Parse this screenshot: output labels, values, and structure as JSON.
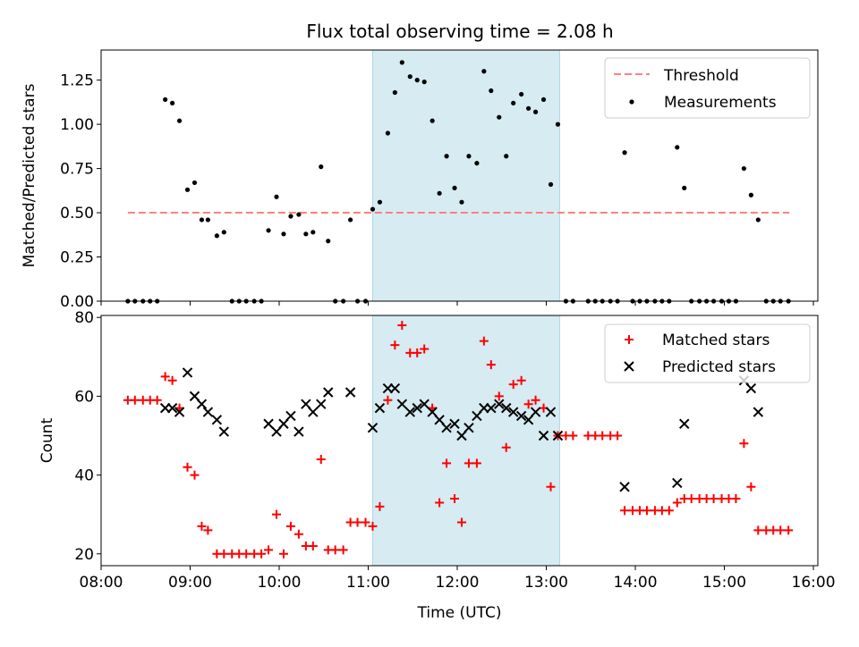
{
  "title": "Flux total observing time = 2.08 h",
  "colors": {
    "threshold": "#ff8080",
    "measurements": "#000000",
    "matched": "#ff0000",
    "predicted": "#000000",
    "shade": "#add8e6"
  },
  "chart_data": [
    {
      "type": "scatter",
      "ylabel": "Matched/Predicted stars",
      "ylim": [
        0,
        1.42
      ],
      "xlim": [
        8.0,
        16.05
      ],
      "yticks": [
        0.0,
        0.25,
        0.5,
        0.75,
        1.0,
        1.25
      ],
      "yticklabels": [
        "0.00",
        "0.25",
        "0.50",
        "0.75",
        "1.00",
        "1.25"
      ],
      "grid": false,
      "legend_position": "top-right",
      "shaded_interval": [
        11.05,
        13.15
      ],
      "threshold": {
        "name": "Threshold",
        "y": 0.5,
        "x_range": [
          8.3,
          15.73
        ]
      },
      "series": [
        {
          "name": "Measurements",
          "points": [
            [
              8.3,
              0
            ],
            [
              8.38,
              0
            ],
            [
              8.47,
              0
            ],
            [
              8.55,
              0
            ],
            [
              8.63,
              0
            ],
            [
              8.72,
              1.14
            ],
            [
              8.8,
              1.12
            ],
            [
              8.88,
              1.02
            ],
            [
              8.97,
              0.63
            ],
            [
              9.05,
              0.67
            ],
            [
              9.13,
              0.46
            ],
            [
              9.2,
              0.46
            ],
            [
              9.3,
              0.37
            ],
            [
              9.38,
              0.39
            ],
            [
              9.47,
              0
            ],
            [
              9.55,
              0
            ],
            [
              9.63,
              0
            ],
            [
              9.72,
              0
            ],
            [
              9.8,
              0
            ],
            [
              9.88,
              0.4
            ],
            [
              9.97,
              0.59
            ],
            [
              10.05,
              0.38
            ],
            [
              10.13,
              0.48
            ],
            [
              10.22,
              0.49
            ],
            [
              10.3,
              0.38
            ],
            [
              10.38,
              0.39
            ],
            [
              10.47,
              0.76
            ],
            [
              10.55,
              0.34
            ],
            [
              10.63,
              0
            ],
            [
              10.72,
              0
            ],
            [
              10.88,
              0
            ],
            [
              10.97,
              0
            ],
            [
              10.8,
              0.46
            ],
            [
              11.05,
              0.52
            ],
            [
              11.13,
              0.56
            ],
            [
              11.22,
              0.95
            ],
            [
              11.3,
              1.18
            ],
            [
              11.38,
              1.35
            ],
            [
              11.47,
              1.27
            ],
            [
              11.55,
              1.25
            ],
            [
              11.63,
              1.24
            ],
            [
              11.72,
              1.02
            ],
            [
              11.8,
              0.61
            ],
            [
              11.88,
              0.82
            ],
            [
              11.97,
              0.64
            ],
            [
              12.05,
              0.56
            ],
            [
              12.13,
              0.82
            ],
            [
              12.22,
              0.78
            ],
            [
              12.3,
              1.3
            ],
            [
              12.38,
              1.19
            ],
            [
              12.47,
              1.04
            ],
            [
              12.55,
              0.82
            ],
            [
              12.63,
              1.12
            ],
            [
              12.72,
              1.17
            ],
            [
              12.8,
              1.09
            ],
            [
              12.88,
              1.07
            ],
            [
              12.97,
              1.14
            ],
            [
              13.05,
              0.66
            ],
            [
              13.13,
              1.0
            ],
            [
              13.22,
              0
            ],
            [
              13.3,
              0
            ],
            [
              13.47,
              0
            ],
            [
              13.55,
              0
            ],
            [
              13.63,
              0
            ],
            [
              13.72,
              0
            ],
            [
              13.8,
              0
            ],
            [
              13.88,
              0.84
            ],
            [
              13.97,
              0
            ],
            [
              14.05,
              0
            ],
            [
              14.13,
              0
            ],
            [
              14.22,
              0
            ],
            [
              14.3,
              0
            ],
            [
              14.38,
              0
            ],
            [
              14.47,
              0.87
            ],
            [
              14.55,
              0.64
            ],
            [
              14.63,
              0
            ],
            [
              14.72,
              0
            ],
            [
              14.8,
              0
            ],
            [
              14.88,
              0
            ],
            [
              14.97,
              0
            ],
            [
              15.05,
              0
            ],
            [
              15.13,
              0
            ],
            [
              15.22,
              0.75
            ],
            [
              15.3,
              0.6
            ],
            [
              15.38,
              0.46
            ],
            [
              15.47,
              0
            ],
            [
              15.55,
              0
            ],
            [
              15.63,
              0
            ],
            [
              15.72,
              0
            ]
          ]
        }
      ]
    },
    {
      "type": "scatter",
      "xlabel": "Time (UTC)",
      "ylabel": "Count",
      "ylim": [
        17,
        80.5
      ],
      "xlim": [
        8.0,
        16.05
      ],
      "yticks": [
        20,
        40,
        60,
        80
      ],
      "xticks": [
        8,
        9,
        10,
        11,
        12,
        13,
        14,
        15,
        16
      ],
      "xticklabels": [
        "08:00",
        "09:00",
        "10:00",
        "11:00",
        "12:00",
        "13:00",
        "14:00",
        "15:00",
        "16:00"
      ],
      "grid": false,
      "legend_position": "top-right",
      "shaded_interval": [
        11.05,
        13.15
      ],
      "series": [
        {
          "name": "Matched stars",
          "marker": "+",
          "points": [
            [
              8.3,
              59
            ],
            [
              8.38,
              59
            ],
            [
              8.47,
              59
            ],
            [
              8.55,
              59
            ],
            [
              8.63,
              59
            ],
            [
              8.72,
              65
            ],
            [
              8.8,
              64
            ],
            [
              8.88,
              57
            ],
            [
              8.97,
              42
            ],
            [
              9.05,
              40
            ],
            [
              9.13,
              27
            ],
            [
              9.2,
              26
            ],
            [
              9.3,
              20
            ],
            [
              9.38,
              20
            ],
            [
              9.47,
              20
            ],
            [
              9.55,
              20
            ],
            [
              9.63,
              20
            ],
            [
              9.72,
              20
            ],
            [
              9.8,
              20
            ],
            [
              9.88,
              21
            ],
            [
              9.97,
              30
            ],
            [
              10.05,
              20
            ],
            [
              10.13,
              27
            ],
            [
              10.22,
              25
            ],
            [
              10.3,
              22
            ],
            [
              10.38,
              22
            ],
            [
              10.47,
              44
            ],
            [
              10.55,
              21
            ],
            [
              10.63,
              21
            ],
            [
              10.72,
              21
            ],
            [
              10.8,
              28
            ],
            [
              10.88,
              28
            ],
            [
              10.97,
              28
            ],
            [
              11.05,
              27
            ],
            [
              11.13,
              32
            ],
            [
              11.22,
              59
            ],
            [
              11.3,
              73
            ],
            [
              11.38,
              78
            ],
            [
              11.47,
              71
            ],
            [
              11.55,
              71
            ],
            [
              11.63,
              72
            ],
            [
              11.72,
              57
            ],
            [
              11.8,
              33
            ],
            [
              11.88,
              43
            ],
            [
              11.97,
              34
            ],
            [
              12.05,
              28
            ],
            [
              12.13,
              43
            ],
            [
              12.22,
              43
            ],
            [
              12.3,
              74
            ],
            [
              12.38,
              68
            ],
            [
              12.47,
              60
            ],
            [
              12.55,
              47
            ],
            [
              12.63,
              63
            ],
            [
              12.72,
              64
            ],
            [
              12.8,
              58
            ],
            [
              12.88,
              59
            ],
            [
              12.97,
              57
            ],
            [
              13.05,
              37
            ],
            [
              13.13,
              50
            ],
            [
              13.22,
              50
            ],
            [
              13.3,
              50
            ],
            [
              13.47,
              50
            ],
            [
              13.55,
              50
            ],
            [
              13.63,
              50
            ],
            [
              13.72,
              50
            ],
            [
              13.8,
              50
            ],
            [
              13.88,
              31
            ],
            [
              13.97,
              31
            ],
            [
              14.05,
              31
            ],
            [
              14.13,
              31
            ],
            [
              14.22,
              31
            ],
            [
              14.3,
              31
            ],
            [
              14.38,
              31
            ],
            [
              14.47,
              33
            ],
            [
              14.55,
              34
            ],
            [
              14.63,
              34
            ],
            [
              14.72,
              34
            ],
            [
              14.8,
              34
            ],
            [
              14.88,
              34
            ],
            [
              14.97,
              34
            ],
            [
              15.05,
              34
            ],
            [
              15.13,
              34
            ],
            [
              15.22,
              48
            ],
            [
              15.3,
              37
            ],
            [
              15.38,
              26
            ],
            [
              15.47,
              26
            ],
            [
              15.55,
              26
            ],
            [
              15.63,
              26
            ],
            [
              15.72,
              26
            ]
          ]
        },
        {
          "name": "Predicted stars",
          "marker": "x",
          "points": [
            [
              8.72,
              57
            ],
            [
              8.8,
              57
            ],
            [
              8.88,
              56
            ],
            [
              8.97,
              66
            ],
            [
              9.05,
              60
            ],
            [
              9.13,
              58
            ],
            [
              9.2,
              56
            ],
            [
              9.3,
              54
            ],
            [
              9.38,
              51
            ],
            [
              9.88,
              53
            ],
            [
              9.97,
              51
            ],
            [
              10.05,
              53
            ],
            [
              10.13,
              55
            ],
            [
              10.22,
              51
            ],
            [
              10.3,
              58
            ],
            [
              10.38,
              56
            ],
            [
              10.47,
              58
            ],
            [
              10.55,
              61
            ],
            [
              10.8,
              61
            ],
            [
              11.05,
              52
            ],
            [
              11.13,
              57
            ],
            [
              11.22,
              62
            ],
            [
              11.3,
              62
            ],
            [
              11.38,
              58
            ],
            [
              11.47,
              56
            ],
            [
              11.55,
              57
            ],
            [
              11.63,
              58
            ],
            [
              11.72,
              56
            ],
            [
              11.8,
              54
            ],
            [
              11.88,
              52
            ],
            [
              11.97,
              53
            ],
            [
              12.05,
              50
            ],
            [
              12.13,
              52
            ],
            [
              12.22,
              55
            ],
            [
              12.3,
              57
            ],
            [
              12.38,
              57
            ],
            [
              12.47,
              58
            ],
            [
              12.55,
              57
            ],
            [
              12.63,
              56
            ],
            [
              12.72,
              55
            ],
            [
              12.8,
              54
            ],
            [
              12.88,
              56
            ],
            [
              12.97,
              50
            ],
            [
              13.05,
              56
            ],
            [
              13.13,
              50
            ],
            [
              13.88,
              37
            ],
            [
              14.47,
              38
            ],
            [
              14.55,
              53
            ],
            [
              15.22,
              64
            ],
            [
              15.3,
              62
            ],
            [
              15.38,
              56
            ]
          ]
        }
      ]
    }
  ]
}
